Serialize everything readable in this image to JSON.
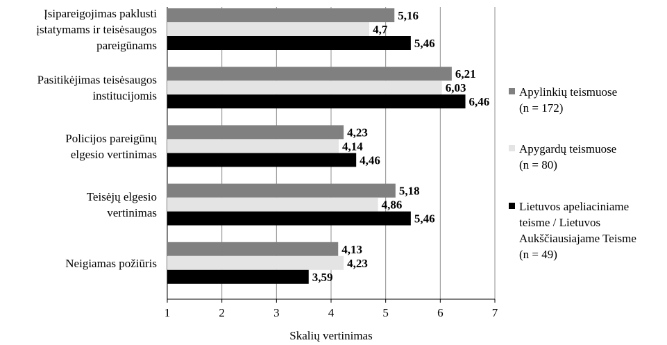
{
  "chart_data": {
    "type": "bar",
    "orientation": "horizontal",
    "categories": [
      [
        "Įsipareigojimas paklusti",
        "įstatymams ir teisėsaugos",
        "pareigūnams"
      ],
      [
        "Pasitikėjimas teisėsaugos",
        "institucijomis"
      ],
      [
        "Policijos pareigūnų",
        "elgesio vertinimas"
      ],
      [
        "Teisėjų elgesio",
        "vertinimas"
      ],
      [
        "Neigiamas požiūris"
      ]
    ],
    "series": [
      {
        "name": [
          "Apylinkių teismuose",
          "(n = 172)"
        ],
        "color": "#808080",
        "values": [
          5.16,
          6.21,
          4.23,
          5.18,
          4.13
        ],
        "labels": [
          "5,16",
          "6,21",
          "4,23",
          "5,18",
          "4,13"
        ]
      },
      {
        "name": [
          "Apygardų teismuose",
          "(n = 80)"
        ],
        "color": "#e4e4e4",
        "values": [
          4.7,
          6.03,
          4.14,
          4.86,
          4.23
        ],
        "labels": [
          "4,7",
          "6,03",
          "4,14",
          "4,86",
          "4,23"
        ]
      },
      {
        "name": [
          "Lietuvos apeliaciniame",
          "teisme / Lietuvos",
          "Aukščiausiajame Teisme",
          "(n = 49)"
        ],
        "color": "#000000",
        "values": [
          5.46,
          6.46,
          4.46,
          5.46,
          3.59
        ],
        "labels": [
          "5,46",
          "6,46",
          "4,46",
          "5,46",
          "3,59"
        ]
      }
    ],
    "xlabel": "Skalių vertinimas",
    "xlim": [
      1,
      7
    ],
    "xticks": [
      "1",
      "2",
      "3",
      "4",
      "5",
      "6",
      "7"
    ],
    "grid": "vertical",
    "legend_position": "right"
  }
}
